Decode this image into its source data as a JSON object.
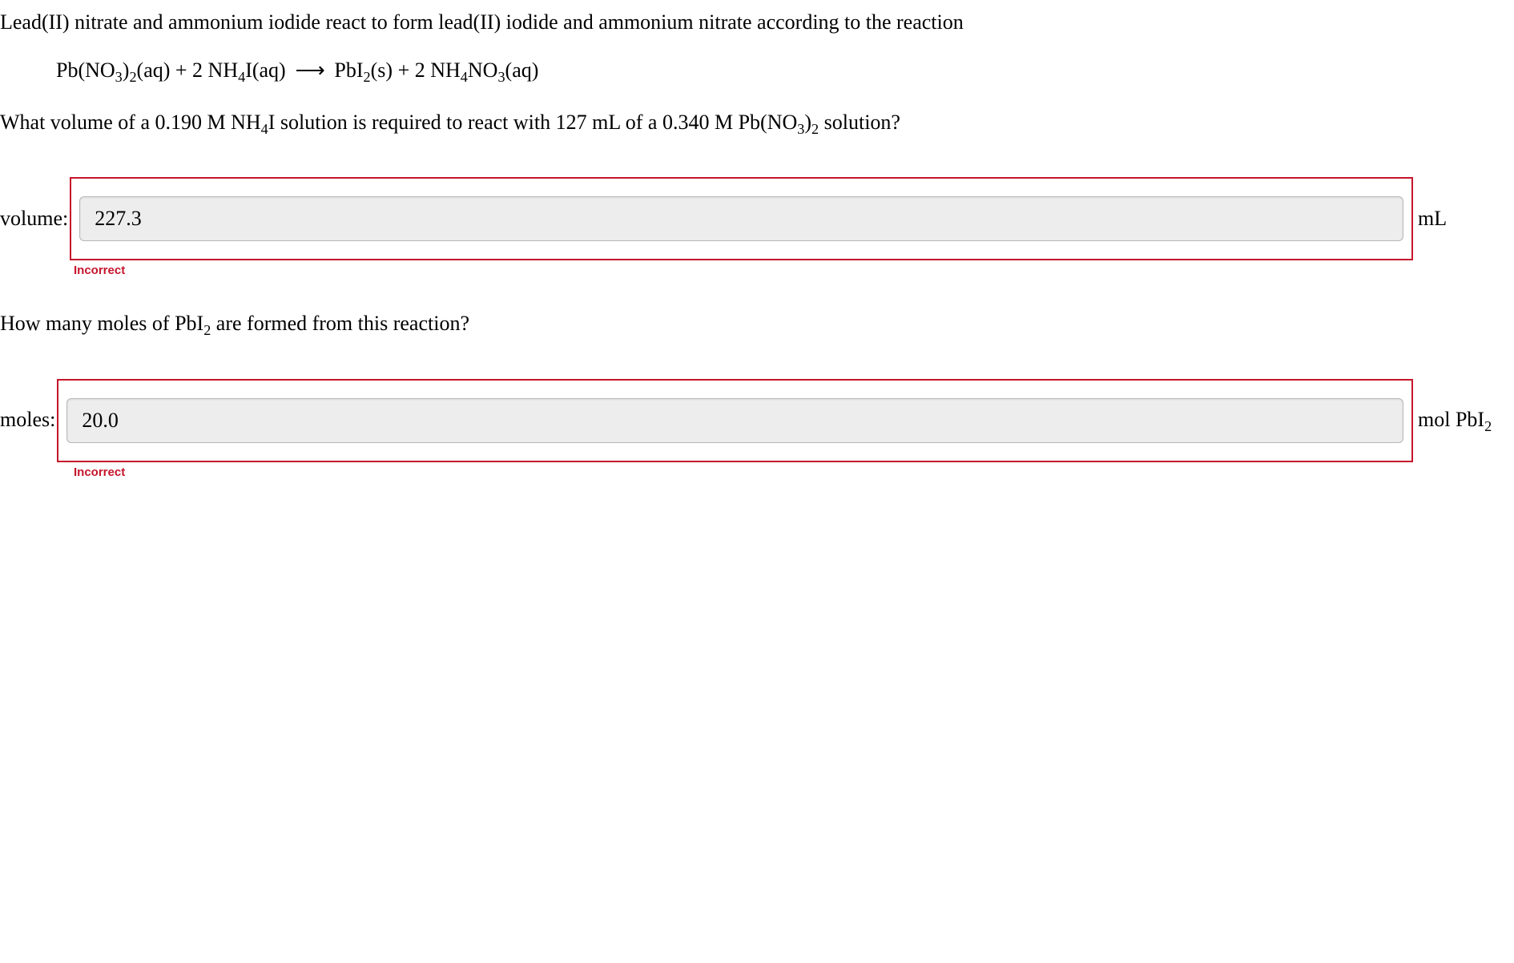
{
  "colors": {
    "incorrect_border": "#c5152b",
    "incorrect_text": "#c5152b"
  },
  "intro_text": "Lead(II) nitrate and ammonium iodide react to form lead(II) iodide and ammonium nitrate according to the reaction",
  "equation_html": "Pb(NO<sub>3</sub>)<sub>2</sub>(aq) + 2 NH<sub>4</sub>I(aq)  <span class='arrow'>⟶</span>  PbI<sub>2</sub>(s) + 2 NH<sub>4</sub>NO<sub>3</sub>(aq)",
  "question1_html": "What volume of a 0.190 M NH<sub>4</sub>I solution is required to react with 127 mL of a 0.340 M Pb(NO<sub>3</sub>)<sub>2</sub> solution?",
  "answer1": {
    "label": "volume:",
    "value": "227.3",
    "unit": "mL",
    "feedback": "Incorrect"
  },
  "question2_html": "How many moles of PbI<sub>2</sub> are formed from this reaction?",
  "answer2": {
    "label": "moles:",
    "value": "20.0",
    "unit_html": "mol PbI<sub>2</sub>",
    "feedback": "Incorrect"
  }
}
